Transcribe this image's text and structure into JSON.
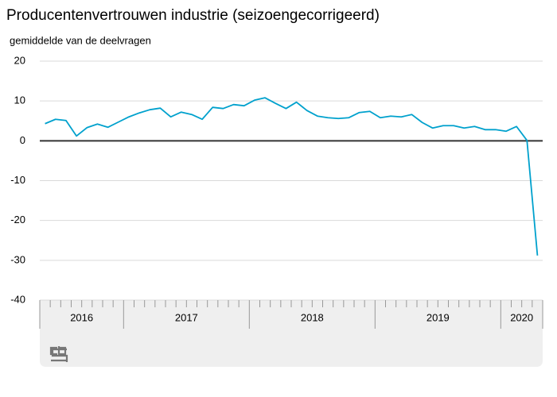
{
  "chart_data": {
    "type": "line",
    "title": "Producentenvertrouwen industrie (seizoengecorrigeerd)",
    "subtitle": "gemiddelde van de deelvragen",
    "categories": [
      "2016",
      null,
      null,
      null,
      null,
      null,
      null,
      null,
      "2017",
      null,
      null,
      null,
      null,
      null,
      null,
      null,
      null,
      null,
      null,
      null,
      "2018",
      null,
      null,
      null,
      null,
      null,
      null,
      null,
      null,
      null,
      null,
      null,
      "2019",
      null,
      null,
      null,
      null,
      null,
      null,
      null,
      null,
      null,
      null,
      null,
      "2020",
      null,
      null,
      null
    ],
    "series": [
      {
        "name": "Producentenvertrouwen",
        "color": "#00a1cd",
        "values": [
          4.3,
          5.4,
          5.1,
          1.2,
          3.3,
          4.2,
          3.4,
          4.7,
          6.0,
          7.0,
          7.8,
          8.2,
          6.0,
          7.2,
          6.6,
          5.4,
          8.4,
          8.1,
          9.1,
          8.8,
          10.2,
          10.8,
          9.4,
          8.1,
          9.7,
          7.6,
          6.2,
          5.8,
          5.6,
          5.8,
          7.1,
          7.4,
          5.8,
          6.2,
          6.0,
          6.6,
          4.6,
          3.2,
          3.8,
          3.8,
          3.2,
          3.6,
          2.8,
          2.8,
          2.4,
          3.6,
          0.1,
          -28.8
        ]
      }
    ],
    "ylim": [
      -40,
      20
    ],
    "yticks": [
      -40,
      -30,
      -20,
      -10,
      0,
      10,
      20
    ],
    "grid": true,
    "zero_line": true,
    "legend": false
  }
}
